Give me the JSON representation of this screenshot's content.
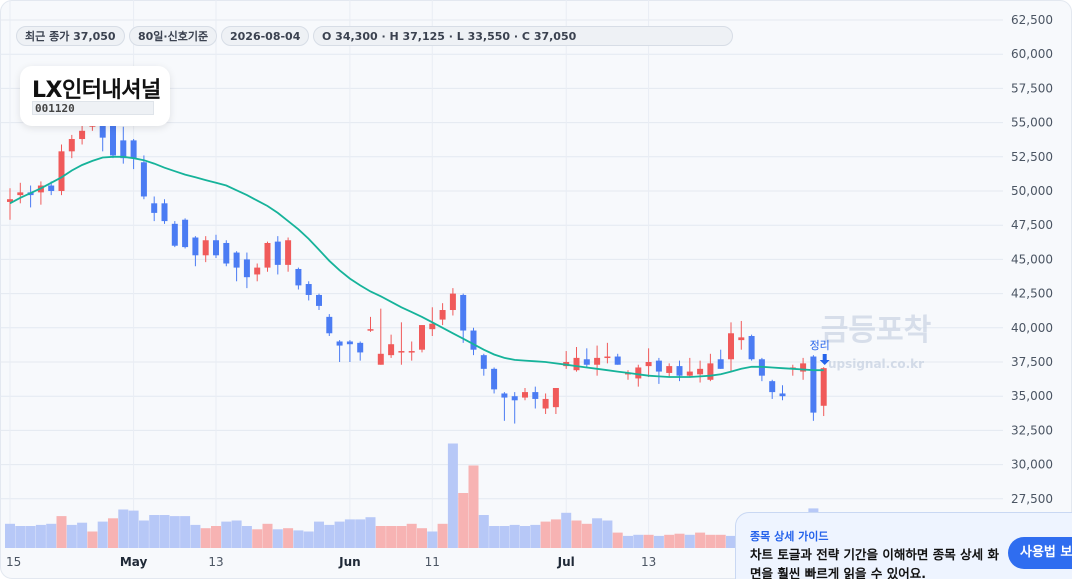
{
  "header": {
    "close_chip": "최근 종가 37,050",
    "period_chip": "80일·신호기준",
    "date_chip": "2026-08-04",
    "ohlc_chip": "O 34,300 · H 37,125 · L 33,550 · C 37,050"
  },
  "stock": {
    "name": "LX인터내셔널",
    "code": "001120"
  },
  "watermark": {
    "main": "금등포착",
    "sub": "upsignal.co.kr"
  },
  "signal_label": "정리",
  "guide": {
    "title": "종목 상세 가이드",
    "text": "차트 토글과 전략 기간을 이해하면 종목 상세 화면을 훨씬 빠르게 읽을 수 있어요.",
    "button": "사용법 보기"
  },
  "colors": {
    "up": "#f05a5a",
    "down": "#4b7cf3",
    "ma": "#16b39a",
    "vol_up": "#f7b3b3",
    "vol_down": "#b7c8f7",
    "accent": "#2563eb"
  },
  "chart_data": {
    "type": "candlestick",
    "y_axis_ticks": [
      "62,500",
      "60,000",
      "57,500",
      "55,000",
      "52,500",
      "50,000",
      "47,500",
      "45,000",
      "42,500",
      "40,000",
      "37,500",
      "35,000",
      "32,500",
      "30,000",
      "27,500"
    ],
    "ylim": [
      27500,
      62500
    ],
    "x_axis_ticks": [
      "15",
      "May",
      "13",
      "Jun",
      "11",
      "Jul",
      "13"
    ],
    "candles": [
      {
        "o": 49200,
        "h": 50200,
        "l": 47900,
        "c": 49400
      },
      {
        "o": 49700,
        "h": 50600,
        "l": 49100,
        "c": 49900
      },
      {
        "o": 49900,
        "h": 50400,
        "l": 48800,
        "c": 49700
      },
      {
        "o": 49900,
        "h": 50700,
        "l": 49000,
        "c": 50400
      },
      {
        "o": 50400,
        "h": 50700,
        "l": 49700,
        "c": 50000
      },
      {
        "o": 50000,
        "h": 53400,
        "l": 49700,
        "c": 52900
      },
      {
        "o": 52900,
        "h": 54100,
        "l": 52400,
        "c": 53800
      },
      {
        "o": 53800,
        "h": 54800,
        "l": 53400,
        "c": 54400
      },
      {
        "o": 54700,
        "h": 55100,
        "l": 54400,
        "c": 55000
      },
      {
        "o": 55000,
        "h": 55100,
        "l": 52900,
        "c": 53900
      },
      {
        "o": 55000,
        "h": 55100,
        "l": 52400,
        "c": 52600
      },
      {
        "o": 53700,
        "h": 54700,
        "l": 52000,
        "c": 52400
      },
      {
        "o": 53700,
        "h": 53800,
        "l": 51600,
        "c": 52400
      },
      {
        "o": 52100,
        "h": 52600,
        "l": 49400,
        "c": 49600
      },
      {
        "o": 49100,
        "h": 49600,
        "l": 47800,
        "c": 48400
      },
      {
        "o": 49100,
        "h": 49400,
        "l": 47600,
        "c": 47800
      },
      {
        "o": 47600,
        "h": 47800,
        "l": 45900,
        "c": 46000
      },
      {
        "o": 47900,
        "h": 48000,
        "l": 45800,
        "c": 45900
      },
      {
        "o": 46600,
        "h": 46700,
        "l": 44500,
        "c": 45300
      },
      {
        "o": 45300,
        "h": 46700,
        "l": 44800,
        "c": 46400
      },
      {
        "o": 46400,
        "h": 46800,
        "l": 45100,
        "c": 45300
      },
      {
        "o": 46200,
        "h": 46400,
        "l": 44500,
        "c": 44700
      },
      {
        "o": 45500,
        "h": 45600,
        "l": 43400,
        "c": 44400
      },
      {
        "o": 45000,
        "h": 45500,
        "l": 42900,
        "c": 43700
      },
      {
        "o": 43900,
        "h": 44700,
        "l": 43400,
        "c": 44400
      },
      {
        "o": 44400,
        "h": 46300,
        "l": 44100,
        "c": 46200
      },
      {
        "o": 46300,
        "h": 46700,
        "l": 43900,
        "c": 44600
      },
      {
        "o": 44600,
        "h": 46600,
        "l": 44100,
        "c": 46400
      },
      {
        "o": 44300,
        "h": 44400,
        "l": 42800,
        "c": 43100
      },
      {
        "o": 43200,
        "h": 43400,
        "l": 42000,
        "c": 42400
      },
      {
        "o": 42400,
        "h": 42500,
        "l": 41300,
        "c": 41600
      },
      {
        "o": 40800,
        "h": 41000,
        "l": 39400,
        "c": 39600
      },
      {
        "o": 39000,
        "h": 39100,
        "l": 37500,
        "c": 38700
      },
      {
        "o": 39000,
        "h": 39100,
        "l": 37500,
        "c": 38800
      },
      {
        "o": 38900,
        "h": 39000,
        "l": 37600,
        "c": 38200
      },
      {
        "o": 39900,
        "h": 40800,
        "l": 39700,
        "c": 39900
      },
      {
        "o": 37300,
        "h": 41400,
        "l": 37300,
        "c": 38100
      },
      {
        "o": 38000,
        "h": 39500,
        "l": 37800,
        "c": 38800
      },
      {
        "o": 38300,
        "h": 40400,
        "l": 37300,
        "c": 38300
      },
      {
        "o": 38200,
        "h": 39000,
        "l": 37600,
        "c": 38300
      },
      {
        "o": 38400,
        "h": 40200,
        "l": 38200,
        "c": 40200
      },
      {
        "o": 39900,
        "h": 41500,
        "l": 39400,
        "c": 40300
      },
      {
        "o": 40600,
        "h": 41800,
        "l": 40200,
        "c": 41300
      },
      {
        "o": 41300,
        "h": 42900,
        "l": 40900,
        "c": 42500
      },
      {
        "o": 42400,
        "h": 42500,
        "l": 38900,
        "c": 39800
      },
      {
        "o": 39800,
        "h": 40000,
        "l": 38000,
        "c": 38400
      },
      {
        "o": 38000,
        "h": 38100,
        "l": 36500,
        "c": 37000
      },
      {
        "o": 37000,
        "h": 37100,
        "l": 35200,
        "c": 35500
      },
      {
        "o": 35200,
        "h": 35300,
        "l": 33200,
        "c": 34900
      },
      {
        "o": 35000,
        "h": 35300,
        "l": 33000,
        "c": 34700
      },
      {
        "o": 34900,
        "h": 35600,
        "l": 34700,
        "c": 35300
      },
      {
        "o": 35300,
        "h": 35700,
        "l": 34100,
        "c": 34800
      },
      {
        "o": 34100,
        "h": 35200,
        "l": 33700,
        "c": 34800
      },
      {
        "o": 34200,
        "h": 35600,
        "l": 33700,
        "c": 35600
      },
      {
        "o": 37200,
        "h": 38300,
        "l": 37000,
        "c": 37500
      },
      {
        "o": 36900,
        "h": 38600,
        "l": 36800,
        "c": 37800
      },
      {
        "o": 37700,
        "h": 38500,
        "l": 37100,
        "c": 37300
      },
      {
        "o": 37300,
        "h": 38700,
        "l": 36500,
        "c": 37800
      },
      {
        "o": 37800,
        "h": 38900,
        "l": 37400,
        "c": 37900
      },
      {
        "o": 37900,
        "h": 38100,
        "l": 37300,
        "c": 37300
      },
      {
        "o": 36600,
        "h": 36900,
        "l": 36200,
        "c": 36700
      },
      {
        "o": 36300,
        "h": 37300,
        "l": 35700,
        "c": 37100
      },
      {
        "o": 37200,
        "h": 38500,
        "l": 36400,
        "c": 37500
      },
      {
        "o": 37600,
        "h": 37800,
        "l": 35900,
        "c": 36800
      },
      {
        "o": 36700,
        "h": 37400,
        "l": 36400,
        "c": 37200
      },
      {
        "o": 37200,
        "h": 37600,
        "l": 36100,
        "c": 36500
      },
      {
        "o": 36500,
        "h": 37800,
        "l": 36400,
        "c": 36800
      },
      {
        "o": 36600,
        "h": 37600,
        "l": 36000,
        "c": 37000
      },
      {
        "o": 36200,
        "h": 38100,
        "l": 36100,
        "c": 37400
      },
      {
        "o": 37700,
        "h": 38400,
        "l": 37000,
        "c": 37000
      },
      {
        "o": 37700,
        "h": 40400,
        "l": 36800,
        "c": 39600
      },
      {
        "o": 39100,
        "h": 40500,
        "l": 38400,
        "c": 39300
      },
      {
        "o": 39400,
        "h": 39500,
        "l": 37600,
        "c": 37700
      },
      {
        "o": 37700,
        "h": 37800,
        "l": 36100,
        "c": 36500
      },
      {
        "o": 36100,
        "h": 36200,
        "l": 34800,
        "c": 35300
      },
      {
        "o": 35200,
        "h": 35800,
        "l": 34700,
        "c": 35000
      },
      {
        "o": 37100,
        "h": 37300,
        "l": 36500,
        "c": 37100
      },
      {
        "o": 36800,
        "h": 37800,
        "l": 36200,
        "c": 37400
      },
      {
        "o": 37900,
        "h": 38000,
        "l": 33200,
        "c": 33800
      },
      {
        "o": 34300,
        "h": 37125,
        "l": 33550,
        "c": 37050
      }
    ],
    "ma_line": [
      49100,
      49500,
      49850,
      50200,
      50600,
      51000,
      51500,
      51900,
      52200,
      52450,
      52500,
      52500,
      52400,
      52250,
      52000,
      51700,
      51450,
      51200,
      51000,
      50800,
      50600,
      50400,
      50050,
      49700,
      49300,
      48900,
      48400,
      47800,
      47200,
      46500,
      45700,
      44900,
      44200,
      43600,
      43100,
      42650,
      42300,
      41900,
      41500,
      41150,
      40800,
      40400,
      40000,
      39600,
      39200,
      38800,
      38400,
      38050,
      37800,
      37650,
      37600,
      37550,
      37500,
      37400,
      37300,
      37200,
      37100,
      37000,
      36900,
      36800,
      36700,
      36600,
      36500,
      36450,
      36400,
      36400,
      36400,
      36450,
      36500,
      36600,
      36800,
      37000,
      37150,
      37150,
      37100,
      37050,
      37000,
      36950,
      36900,
      36900
    ],
    "volume_ticks": [],
    "volume": [
      {
        "v": 0.22,
        "dir": "down"
      },
      {
        "v": 0.2,
        "dir": "down"
      },
      {
        "v": 0.2,
        "dir": "down"
      },
      {
        "v": 0.21,
        "dir": "down"
      },
      {
        "v": 0.22,
        "dir": "down"
      },
      {
        "v": 0.29,
        "dir": "up"
      },
      {
        "v": 0.21,
        "dir": "down"
      },
      {
        "v": 0.23,
        "dir": "down"
      },
      {
        "v": 0.15,
        "dir": "up"
      },
      {
        "v": 0.24,
        "dir": "down"
      },
      {
        "v": 0.27,
        "dir": "up"
      },
      {
        "v": 0.35,
        "dir": "down"
      },
      {
        "v": 0.34,
        "dir": "down"
      },
      {
        "v": 0.25,
        "dir": "down"
      },
      {
        "v": 0.3,
        "dir": "down"
      },
      {
        "v": 0.3,
        "dir": "down"
      },
      {
        "v": 0.29,
        "dir": "down"
      },
      {
        "v": 0.29,
        "dir": "down"
      },
      {
        "v": 0.21,
        "dir": "down"
      },
      {
        "v": 0.18,
        "dir": "up"
      },
      {
        "v": 0.2,
        "dir": "up"
      },
      {
        "v": 0.24,
        "dir": "down"
      },
      {
        "v": 0.25,
        "dir": "down"
      },
      {
        "v": 0.2,
        "dir": "down"
      },
      {
        "v": 0.17,
        "dir": "up"
      },
      {
        "v": 0.22,
        "dir": "up"
      },
      {
        "v": 0.17,
        "dir": "down"
      },
      {
        "v": 0.18,
        "dir": "up"
      },
      {
        "v": 0.16,
        "dir": "down"
      },
      {
        "v": 0.15,
        "dir": "down"
      },
      {
        "v": 0.24,
        "dir": "down"
      },
      {
        "v": 0.21,
        "dir": "down"
      },
      {
        "v": 0.24,
        "dir": "down"
      },
      {
        "v": 0.26,
        "dir": "down"
      },
      {
        "v": 0.26,
        "dir": "down"
      },
      {
        "v": 0.28,
        "dir": "down"
      },
      {
        "v": 0.2,
        "dir": "up"
      },
      {
        "v": 0.2,
        "dir": "up"
      },
      {
        "v": 0.2,
        "dir": "up"
      },
      {
        "v": 0.22,
        "dir": "up"
      },
      {
        "v": 0.18,
        "dir": "up"
      },
      {
        "v": 0.15,
        "dir": "down"
      },
      {
        "v": 0.22,
        "dir": "up"
      },
      {
        "v": 0.95,
        "dir": "down"
      },
      {
        "v": 0.5,
        "dir": "up"
      },
      {
        "v": 0.75,
        "dir": "up"
      },
      {
        "v": 0.3,
        "dir": "down"
      },
      {
        "v": 0.2,
        "dir": "down"
      },
      {
        "v": 0.2,
        "dir": "down"
      },
      {
        "v": 0.21,
        "dir": "down"
      },
      {
        "v": 0.2,
        "dir": "down"
      },
      {
        "v": 0.21,
        "dir": "down"
      },
      {
        "v": 0.24,
        "dir": "up"
      },
      {
        "v": 0.26,
        "dir": "up"
      },
      {
        "v": 0.32,
        "dir": "down"
      },
      {
        "v": 0.25,
        "dir": "up"
      },
      {
        "v": 0.22,
        "dir": "up"
      },
      {
        "v": 0.27,
        "dir": "down"
      },
      {
        "v": 0.25,
        "dir": "down"
      },
      {
        "v": 0.14,
        "dir": "up"
      },
      {
        "v": 0.11,
        "dir": "down"
      },
      {
        "v": 0.12,
        "dir": "down"
      },
      {
        "v": 0.12,
        "dir": "up"
      },
      {
        "v": 0.11,
        "dir": "down"
      },
      {
        "v": 0.12,
        "dir": "up"
      },
      {
        "v": 0.13,
        "dir": "up"
      },
      {
        "v": 0.12,
        "dir": "down"
      },
      {
        "v": 0.14,
        "dir": "up"
      },
      {
        "v": 0.12,
        "dir": "up"
      },
      {
        "v": 0.12,
        "dir": "up"
      },
      {
        "v": 0.11,
        "dir": "down"
      },
      {
        "v": 0.12,
        "dir": "up"
      },
      {
        "v": 0.13,
        "dir": "up"
      },
      {
        "v": 0.12,
        "dir": "down"
      },
      {
        "v": 0.11,
        "dir": "down"
      },
      {
        "v": 0.12,
        "dir": "up"
      },
      {
        "v": 0.14,
        "dir": "down"
      },
      {
        "v": 0.13,
        "dir": "up"
      },
      {
        "v": 0.36,
        "dir": "down"
      },
      {
        "v": 0.24,
        "dir": "up"
      }
    ]
  }
}
